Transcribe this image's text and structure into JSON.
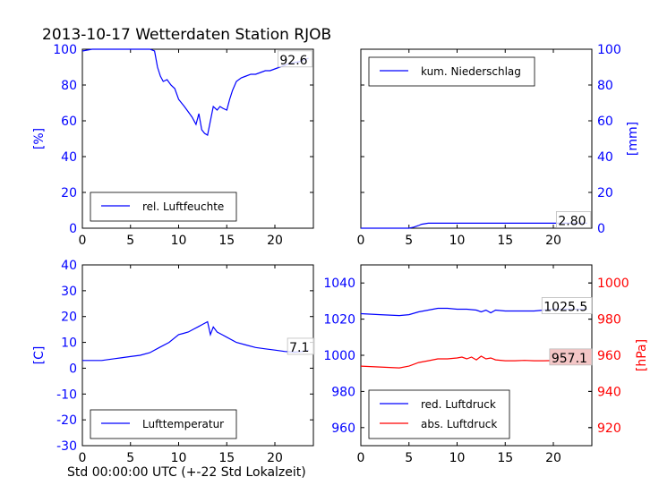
{
  "figure": {
    "title": "2013-10-17 Wetterdaten Station RJOB",
    "bottom_label": "Std 00:00:00 UTC (+-22 Std Lokalzeit)",
    "colors": {
      "blue": "#0000ff",
      "red": "#ff0000"
    }
  },
  "chart_data": [
    {
      "id": "humidity",
      "type": "line",
      "xlim": [
        0,
        24
      ],
      "ylim": [
        0,
        100
      ],
      "xticks": [
        0,
        5,
        10,
        15,
        20
      ],
      "yticks": [
        0,
        20,
        40,
        60,
        80,
        100
      ],
      "ylabel": "[%]",
      "y_axis_side": "left",
      "y_color": "#0000ff",
      "legend": {
        "placement": "lower-left",
        "entries": [
          {
            "label": "rel. Luftfeuchte",
            "color": "#0000ff"
          }
        ]
      },
      "annotation": {
        "text": "92.6",
        "x": 20.5,
        "y": 92.6
      },
      "series": [
        {
          "name": "rel. Luftfeuchte",
          "color": "#0000ff",
          "x": [
            0,
            1,
            2,
            3,
            4,
            5,
            6,
            7,
            7.5,
            7.8,
            8.1,
            8.4,
            8.8,
            9.2,
            9.6,
            10,
            10.3,
            10.6,
            11,
            11.4,
            11.8,
            12.1,
            12.4,
            12.7,
            13,
            13.3,
            13.6,
            14,
            14.3,
            14.6,
            15,
            15.3,
            15.6,
            16,
            16.5,
            17,
            17.5,
            18,
            18.5,
            19,
            19.5,
            20,
            20.5,
            21,
            21.5,
            22,
            22.5,
            23,
            23.5
          ],
          "y": [
            99,
            100,
            100,
            100,
            100,
            100,
            100,
            100,
            99,
            90,
            85,
            82,
            83,
            80,
            78,
            72,
            70,
            68,
            65,
            62,
            58,
            64,
            55,
            53,
            52,
            60,
            68,
            66,
            68,
            67,
            66,
            72,
            77,
            82,
            84,
            85,
            86,
            86,
            87,
            88,
            88,
            89,
            90,
            91,
            92,
            92.6,
            93,
            94,
            95
          ]
        }
      ]
    },
    {
      "id": "precipitation",
      "type": "line",
      "xlim": [
        0,
        24
      ],
      "ylim": [
        0,
        100
      ],
      "xticks": [
        0,
        5,
        10,
        15,
        20
      ],
      "yticks": [
        0,
        20,
        40,
        60,
        80,
        100
      ],
      "ylabel": "[mm]",
      "y_axis_side": "right",
      "y_color": "#0000ff",
      "legend": {
        "placement": "upper-left",
        "entries": [
          {
            "label": "kum. Niederschlag",
            "color": "#0000ff"
          }
        ]
      },
      "annotation": {
        "text": "2.80",
        "x": 20.5,
        "y": 2.8
      },
      "series": [
        {
          "name": "kum. Niederschlag",
          "color": "#0000ff",
          "x": [
            0,
            5,
            5.5,
            6,
            6.3,
            7,
            10,
            15,
            20,
            23.5
          ],
          "y": [
            0,
            0,
            0.6,
            1.5,
            2.2,
            2.8,
            2.8,
            2.8,
            2.8,
            2.8
          ]
        }
      ]
    },
    {
      "id": "temperature",
      "type": "line",
      "xlim": [
        0,
        24
      ],
      "ylim": [
        -30,
        40
      ],
      "xticks": [
        0,
        5,
        10,
        15,
        20
      ],
      "yticks": [
        -30,
        -20,
        -10,
        0,
        10,
        20,
        30,
        40
      ],
      "ylabel": "[C]",
      "y_axis_side": "left",
      "y_color": "#0000ff",
      "legend": {
        "placement": "lower-left",
        "entries": [
          {
            "label": "Lufttemperatur",
            "color": "#0000ff"
          }
        ]
      },
      "annotation": {
        "text": "7.1",
        "x": 21.5,
        "y": 7.1
      },
      "series": [
        {
          "name": "Lufttemperatur",
          "color": "#0000ff",
          "x": [
            0,
            1,
            2,
            3,
            4,
            5,
            6,
            7,
            8,
            9,
            10,
            10.5,
            11,
            11.5,
            12,
            12.5,
            13,
            13.3,
            13.6,
            14,
            14.5,
            15,
            16,
            17,
            18,
            19,
            20,
            21,
            22,
            23,
            23.5
          ],
          "y": [
            3,
            3,
            3,
            3.5,
            4,
            4.5,
            5,
            6,
            8,
            10,
            13,
            13.5,
            14,
            15,
            16,
            17,
            18,
            13,
            16,
            14,
            13,
            12,
            10,
            9,
            8,
            7.5,
            7,
            6.5,
            6.2,
            6.5,
            7
          ]
        }
      ]
    },
    {
      "id": "pressure",
      "type": "line",
      "xlim": [
        0,
        24
      ],
      "ylim": [
        950,
        1050
      ],
      "xticks": [
        0,
        5,
        10,
        15,
        20
      ],
      "yticks": [
        960,
        980,
        1000,
        1020,
        1040
      ],
      "y2lim": [
        910,
        1010
      ],
      "y2ticks": [
        920,
        940,
        960,
        980,
        1000
      ],
      "y_color": "#0000ff",
      "y2_color": "#ff0000",
      "y2label": "[hPa]",
      "legend": {
        "placement": "lower-left",
        "entries": [
          {
            "label": "red. Luftdruck",
            "color": "#0000ff"
          },
          {
            "label": "abs. Luftdruck",
            "color": "#ff0000"
          }
        ]
      },
      "annotations": [
        {
          "text": "1025.5",
          "x": 19,
          "y": 1025.5,
          "axis": "y"
        },
        {
          "text": "957.1",
          "x": 19.8,
          "y": 957.1,
          "axis": "y2",
          "highlight": true
        }
      ],
      "series": [
        {
          "name": "red. Luftdruck",
          "color": "#0000ff",
          "axis": "y",
          "x": [
            0,
            2,
            4,
            5,
            6,
            7,
            8,
            9,
            10,
            11,
            12,
            12.5,
            13,
            13.5,
            14,
            15,
            16,
            17,
            18,
            19,
            20,
            21,
            22,
            23,
            23.5
          ],
          "y": [
            1023,
            1022.5,
            1022,
            1022.5,
            1024,
            1025,
            1026,
            1026,
            1025.5,
            1025.5,
            1025,
            1024,
            1025,
            1023.5,
            1025,
            1024.5,
            1024.5,
            1024.5,
            1024.5,
            1025,
            1025.5,
            1025.5,
            1025.5,
            1025.5,
            1025.5
          ]
        },
        {
          "name": "abs. Luftdruck",
          "color": "#ff0000",
          "axis": "y2",
          "x": [
            0,
            2,
            4,
            5,
            6,
            7,
            8,
            9,
            10,
            10.5,
            11,
            11.5,
            12,
            12.5,
            13,
            13.5,
            14,
            15,
            16,
            17,
            18,
            19,
            20,
            21,
            22,
            23,
            23.5
          ],
          "y": [
            954,
            953.5,
            953,
            954,
            956,
            957,
            958,
            958,
            958.5,
            959,
            958,
            959,
            957.5,
            959.5,
            958,
            958.5,
            957.5,
            957,
            957,
            957.2,
            957,
            957,
            957.1,
            957,
            957.1,
            957,
            957.1
          ]
        }
      ]
    }
  ]
}
